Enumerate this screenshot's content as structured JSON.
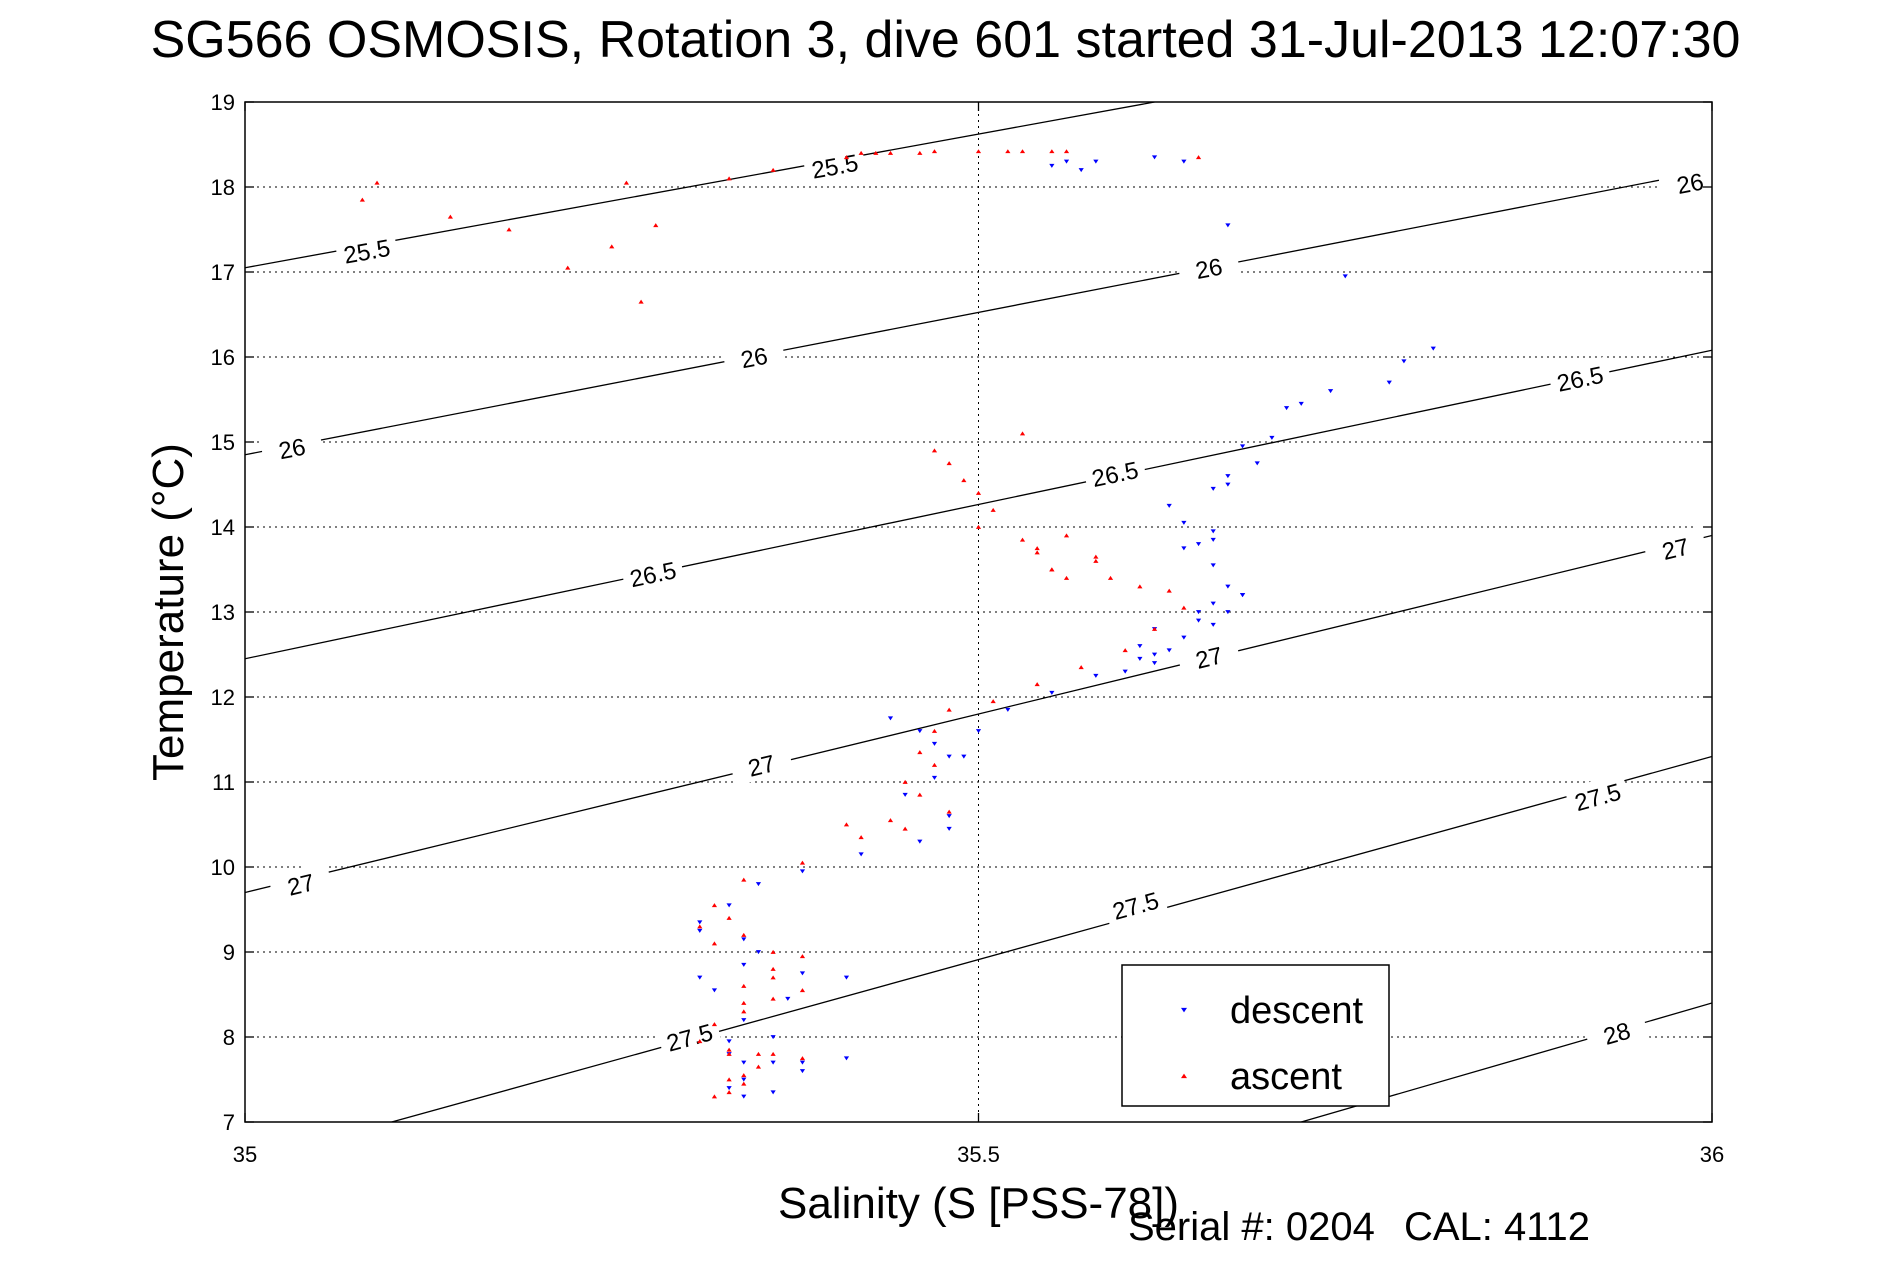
{
  "chart_data": {
    "type": "scatter",
    "title": "SG566 OSMOSIS, Rotation 3, dive 601 started 31-Jul-2013 12:07:30",
    "xlabel": "Salinity (S [PSS-78])",
    "ylabel": "Temperature (°C)",
    "xlim": [
      35,
      36
    ],
    "ylim": [
      7,
      19
    ],
    "xticks": [
      35,
      35.5,
      36
    ],
    "xtick_labels": [
      "35",
      "35.5",
      "36"
    ],
    "yticks": [
      7,
      8,
      9,
      10,
      11,
      12,
      13,
      14,
      15,
      16,
      17,
      18,
      19
    ],
    "ytick_labels": [
      "7",
      "8",
      "9",
      "10",
      "11",
      "12",
      "13",
      "14",
      "15",
      "16",
      "17",
      "18",
      "19"
    ],
    "grid": true,
    "legend_position": "bottom-right",
    "contours": [
      {
        "label": "25.5",
        "points": [
          [
            35.0,
            17.05
          ],
          [
            35.62,
            19.0
          ]
        ]
      },
      {
        "label": "26",
        "points": [
          [
            35.0,
            14.85
          ],
          [
            36.0,
            18.2
          ]
        ]
      },
      {
        "label": "26.5",
        "points": [
          [
            35.0,
            12.45
          ],
          [
            36.0,
            16.08
          ]
        ]
      },
      {
        "label": "27",
        "points": [
          [
            35.0,
            9.7
          ],
          [
            36.0,
            13.9
          ]
        ]
      },
      {
        "label": "27.5",
        "points": [
          [
            35.1,
            7.0
          ],
          [
            36.0,
            11.3
          ]
        ]
      },
      {
        "label": "28",
        "points": [
          [
            35.72,
            7.0
          ],
          [
            36.0,
            8.4
          ]
        ]
      }
    ],
    "contour_labels": [
      {
        "text": "25.5",
        "x": 35.083,
        "y": 17.25
      },
      {
        "text": "25.5",
        "x": 35.402,
        "y": 18.25
      },
      {
        "text": "26",
        "x": 35.032,
        "y": 14.93
      },
      {
        "text": "26",
        "x": 35.347,
        "y": 16.0
      },
      {
        "text": "26",
        "x": 35.657,
        "y": 17.05
      },
      {
        "text": "26",
        "x": 35.985,
        "y": 18.05
      },
      {
        "text": "26.5",
        "x": 35.278,
        "y": 13.45
      },
      {
        "text": "26.5",
        "x": 35.593,
        "y": 14.63
      },
      {
        "text": "26.5",
        "x": 35.91,
        "y": 15.75
      },
      {
        "text": "27",
        "x": 35.038,
        "y": 9.8
      },
      {
        "text": "27",
        "x": 35.352,
        "y": 11.2
      },
      {
        "text": "27",
        "x": 35.657,
        "y": 12.47
      },
      {
        "text": "27",
        "x": 35.975,
        "y": 13.75
      },
      {
        "text": "27.5",
        "x": 35.303,
        "y": 8.0
      },
      {
        "text": "27.5",
        "x": 35.607,
        "y": 9.55
      },
      {
        "text": "27.5",
        "x": 35.922,
        "y": 10.83
      },
      {
        "text": "28",
        "x": 35.935,
        "y": 8.05
      }
    ],
    "series": [
      {
        "name": "descent",
        "color": "#0000ff",
        "marker": "triangle-down",
        "x": [
          35.55,
          35.56,
          35.57,
          35.58,
          35.62,
          35.64,
          35.67,
          35.75,
          35.81,
          35.79,
          35.78,
          35.74,
          35.72,
          35.71,
          35.7,
          35.68,
          35.69,
          35.67,
          35.67,
          35.66,
          35.63,
          35.64,
          35.66,
          35.66,
          35.65,
          35.64,
          35.66,
          35.67,
          35.68,
          35.66,
          35.65,
          35.62,
          35.61,
          35.61,
          35.6,
          35.62,
          35.63,
          35.64,
          35.66,
          35.67,
          35.68,
          35.65,
          35.62,
          35.58,
          35.55,
          35.52,
          35.5,
          35.49,
          35.47,
          35.48,
          35.47,
          35.46,
          35.44,
          35.45,
          35.48,
          35.48,
          35.46,
          35.42,
          35.38,
          35.35,
          35.33,
          35.31,
          35.31,
          35.34,
          35.35,
          35.34,
          35.31,
          35.32,
          35.38,
          35.41,
          35.37,
          35.34,
          35.36,
          35.41,
          35.38,
          35.34,
          35.33,
          35.33,
          35.34,
          35.36,
          35.38,
          35.36,
          35.33,
          35.34
        ],
        "y": [
          18.25,
          18.3,
          18.2,
          18.3,
          18.35,
          18.3,
          17.55,
          16.95,
          16.1,
          15.95,
          15.7,
          15.6,
          15.45,
          15.4,
          15.05,
          14.95,
          14.75,
          14.6,
          14.5,
          14.45,
          14.25,
          14.05,
          13.95,
          13.85,
          13.8,
          13.75,
          13.55,
          13.3,
          13.2,
          13.1,
          13.0,
          12.8,
          12.6,
          12.45,
          12.3,
          12.4,
          12.55,
          12.7,
          12.85,
          13.0,
          13.2,
          12.9,
          12.5,
          12.25,
          12.05,
          11.85,
          11.6,
          11.3,
          11.05,
          11.3,
          11.45,
          11.6,
          11.75,
          10.85,
          10.6,
          10.45,
          10.3,
          10.15,
          9.95,
          9.8,
          9.55,
          9.35,
          9.25,
          9.15,
          9.0,
          8.85,
          8.7,
          8.55,
          8.75,
          8.7,
          8.45,
          8.2,
          8.0,
          7.75,
          7.7,
          7.7,
          7.8,
          7.95,
          7.5,
          7.35,
          7.6,
          7.7,
          7.4,
          7.3
        ]
      },
      {
        "name": "ascent",
        "color": "#ff0000",
        "marker": "triangle-up",
        "x": [
          35.08,
          35.09,
          35.14,
          35.18,
          35.22,
          35.25,
          35.26,
          35.27,
          35.28,
          35.33,
          35.36,
          35.41,
          35.43,
          35.42,
          35.44,
          35.46,
          35.47,
          35.5,
          35.52,
          35.53,
          35.55,
          35.56,
          35.65,
          35.53,
          35.47,
          35.48,
          35.49,
          35.5,
          35.51,
          35.5,
          35.53,
          35.54,
          35.55,
          35.56,
          35.58,
          35.56,
          35.54,
          35.55,
          35.58,
          35.59,
          35.61,
          35.63,
          35.64,
          35.62,
          35.6,
          35.57,
          35.54,
          35.51,
          35.48,
          35.47,
          35.46,
          35.47,
          35.45,
          35.46,
          35.48,
          35.44,
          35.41,
          35.42,
          35.45,
          35.38,
          35.34,
          35.32,
          35.33,
          35.31,
          35.32,
          35.34,
          35.36,
          35.38,
          35.36,
          35.34,
          35.34,
          35.36,
          35.38,
          35.36,
          35.34,
          35.32,
          35.31,
          35.33,
          35.36,
          35.38,
          35.35,
          35.33,
          35.34,
          35.33,
          35.32,
          35.34,
          35.35,
          35.33
        ],
        "y": [
          17.85,
          18.05,
          17.65,
          17.5,
          17.05,
          17.3,
          18.05,
          16.65,
          17.55,
          18.1,
          18.2,
          18.35,
          18.4,
          18.4,
          18.4,
          18.4,
          18.42,
          18.42,
          18.42,
          18.42,
          18.42,
          18.42,
          18.35,
          15.1,
          14.9,
          14.75,
          14.55,
          14.4,
          14.2,
          14.0,
          13.85,
          13.7,
          13.5,
          13.4,
          13.65,
          13.9,
          13.75,
          13.5,
          13.6,
          13.4,
          13.3,
          13.25,
          13.05,
          12.8,
          12.55,
          12.35,
          12.15,
          11.95,
          11.85,
          11.6,
          11.35,
          11.2,
          11.0,
          10.85,
          10.65,
          10.55,
          10.5,
          10.35,
          10.45,
          10.05,
          9.85,
          9.55,
          9.4,
          9.3,
          9.1,
          9.2,
          9.0,
          8.95,
          8.8,
          8.6,
          8.4,
          8.7,
          8.55,
          8.45,
          8.3,
          8.15,
          7.95,
          7.8,
          7.8,
          7.75,
          7.65,
          7.5,
          7.45,
          7.35,
          7.3,
          7.55,
          7.8,
          7.85
        ]
      }
    ],
    "annotation": {
      "serial_label": "Serial #: 0204",
      "cal_label": "CAL: 4112"
    }
  }
}
